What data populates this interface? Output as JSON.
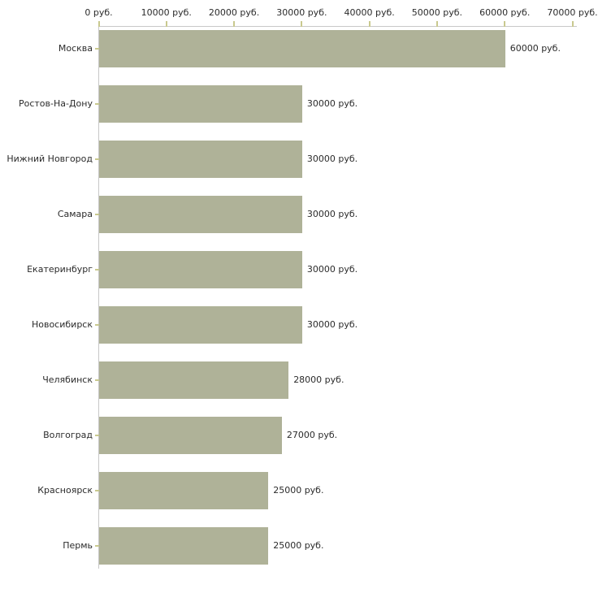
{
  "chart_data": {
    "type": "bar",
    "orientation": "horizontal",
    "title": "",
    "xlabel": "",
    "ylabel": "",
    "unit": "руб.",
    "xlim": [
      0,
      70000
    ],
    "x_tick_step": 10000,
    "x_tick_values": [
      0,
      10000,
      20000,
      30000,
      40000,
      50000,
      60000,
      70000
    ],
    "x_tick_labels": [
      "0 руб.",
      "10000 руб.",
      "20000 руб.",
      "30000 руб.",
      "40000 руб.",
      "50000 руб.",
      "60000 руб.",
      "70000 руб."
    ],
    "categories": [
      "Москва",
      "Ростов-На-Дону",
      "Нижний Новгород",
      "Самара",
      "Екатеринбург",
      "Новосибирск",
      "Челябинск",
      "Волгоград",
      "Красноярск",
      "Пермь"
    ],
    "values": [
      60000,
      30000,
      30000,
      30000,
      30000,
      30000,
      28000,
      27000,
      25000,
      25000
    ],
    "value_labels": [
      "60000 руб.",
      "30000 руб.",
      "30000 руб.",
      "30000 руб.",
      "30000 руб.",
      "30000 руб.",
      "28000 руб.",
      "27000 руб.",
      "25000 руб.",
      "25000 руб."
    ],
    "grid": false,
    "legend": false,
    "colors": {
      "bar": "#afb298",
      "axis_line": "#c8c8c8",
      "tick_mark": "#c9c98f",
      "text": "#2b2b2b",
      "background": "#ffffff"
    }
  }
}
